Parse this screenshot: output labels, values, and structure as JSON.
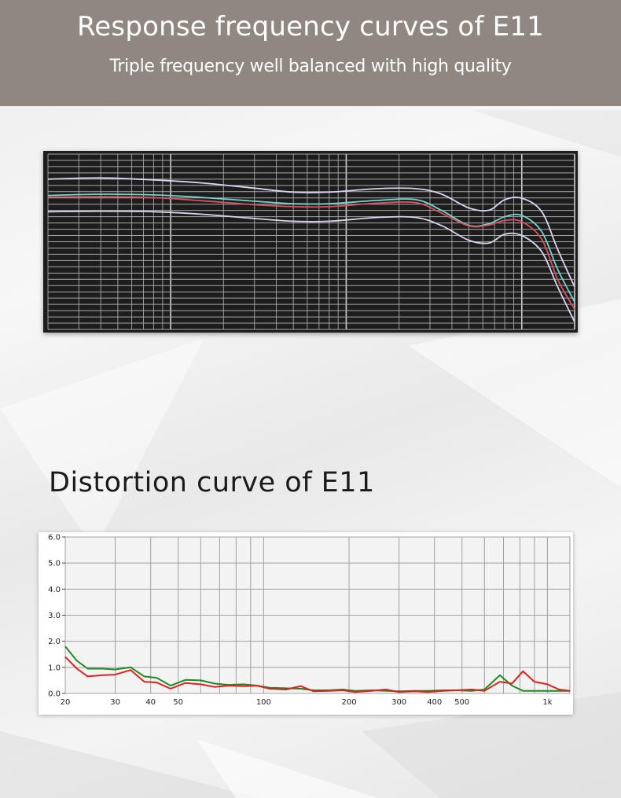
{
  "header": {
    "title": "Response frequency curves of E11",
    "subtitle": "Triple frequency well balanced with high quality"
  },
  "distortion_section": {
    "title": "Distortion curve of E11"
  },
  "colors": {
    "header_bg": "#8f8780",
    "fr_white": "#d8d4f0",
    "fr_cyan": "#6fd6cf",
    "fr_red": "#e0505a",
    "dist_green": "#1f8a1f",
    "dist_red": "#e02020"
  },
  "chart_data": [
    {
      "type": "line",
      "title": "",
      "xlabel": "",
      "ylabel": "",
      "xscale": "log",
      "xlim": [
        20,
        20000
      ],
      "ylim": [
        -60,
        10
      ],
      "grid": true,
      "x": [
        20,
        40,
        80,
        150,
        300,
        500,
        800,
        1500,
        2500,
        3500,
        5000,
        6500,
        8000,
        10000,
        13000,
        16000,
        20000
      ],
      "series": [
        {
          "color": "#d8d4f0",
          "values": [
            0,
            0.5,
            -0.3,
            -1.5,
            -3.6,
            -5.2,
            -5.2,
            -3.8,
            -3.8,
            -6,
            -11.5,
            -12.4,
            -8.2,
            -7.6,
            -13,
            -28,
            -43
          ]
        },
        {
          "color": "#6fd6cf",
          "values": [
            -6.5,
            -6,
            -6.3,
            -7.3,
            -8.8,
            -9.8,
            -9.8,
            -8.5,
            -8.2,
            -12.5,
            -18.5,
            -17.8,
            -15,
            -14.5,
            -21,
            -36,
            -49
          ]
        },
        {
          "color": "#e0505a",
          "values": [
            -7.2,
            -7,
            -7.4,
            -8.6,
            -10.2,
            -11,
            -11,
            -9.6,
            -9.4,
            -13.6,
            -18.7,
            -18.3,
            -16.5,
            -17,
            -24,
            -40,
            -52
          ]
        },
        {
          "color": "#d8d4f0",
          "values": [
            -13,
            -12.8,
            -13,
            -14,
            -15.7,
            -16.8,
            -16.8,
            -15.3,
            -15.3,
            -18.6,
            -24.4,
            -25.5,
            -22,
            -22.5,
            -29,
            -43,
            -57
          ]
        }
      ]
    },
    {
      "type": "line",
      "title": "",
      "xlabel": "",
      "ylabel": "",
      "xscale": "log",
      "xlim": [
        20,
        1200
      ],
      "ylim": [
        0,
        6
      ],
      "grid": true,
      "y_ticks": [
        "0.0",
        "1.0",
        "2.0",
        "3.0",
        "4.0",
        "5.0",
        "6.0"
      ],
      "x_ticks": [
        {
          "value": 20,
          "label": "20"
        },
        {
          "value": 30,
          "label": "30"
        },
        {
          "value": 40,
          "label": "40"
        },
        {
          "value": 50,
          "label": "50"
        },
        {
          "value": 100,
          "label": "100"
        },
        {
          "value": 200,
          "label": "200"
        },
        {
          "value": 300,
          "label": "300"
        },
        {
          "value": 400,
          "label": "400"
        },
        {
          "value": 500,
          "label": "500"
        },
        {
          "value": 1000,
          "label": "1k"
        }
      ],
      "series": [
        {
          "color": "#1f8a1f",
          "x": [
            20,
            22,
            24,
            27,
            30,
            34,
            38,
            42,
            47,
            53,
            60,
            67,
            75,
            85,
            95,
            105,
            120,
            135,
            150,
            170,
            190,
            210,
            240,
            270,
            300,
            340,
            380,
            430,
            480,
            540,
            600,
            680,
            750,
            820,
            900,
            1000,
            1100,
            1200
          ],
          "values": [
            1.8,
            1.25,
            0.95,
            0.95,
            0.92,
            1.0,
            0.65,
            0.6,
            0.3,
            0.52,
            0.5,
            0.38,
            0.33,
            0.35,
            0.3,
            0.22,
            0.2,
            0.18,
            0.12,
            0.12,
            0.15,
            0.1,
            0.12,
            0.1,
            0.08,
            0.1,
            0.1,
            0.12,
            0.12,
            0.1,
            0.15,
            0.7,
            0.3,
            0.1,
            0.1,
            0.1,
            0.1,
            0.1
          ]
        },
        {
          "color": "#e02020",
          "x": [
            20,
            22,
            24,
            27,
            30,
            34,
            38,
            42,
            47,
            53,
            60,
            67,
            75,
            85,
            95,
            105,
            120,
            135,
            150,
            170,
            190,
            210,
            240,
            270,
            300,
            340,
            380,
            430,
            480,
            540,
            600,
            680,
            750,
            820,
            900,
            1000,
            1100,
            1200
          ],
          "values": [
            1.4,
            0.95,
            0.65,
            0.7,
            0.72,
            0.9,
            0.45,
            0.42,
            0.18,
            0.4,
            0.35,
            0.25,
            0.3,
            0.28,
            0.3,
            0.18,
            0.15,
            0.28,
            0.08,
            0.1,
            0.12,
            0.05,
            0.1,
            0.15,
            0.05,
            0.08,
            0.05,
            0.1,
            0.12,
            0.15,
            0.1,
            0.45,
            0.38,
            0.85,
            0.45,
            0.35,
            0.15,
            0.1
          ]
        }
      ]
    }
  ]
}
